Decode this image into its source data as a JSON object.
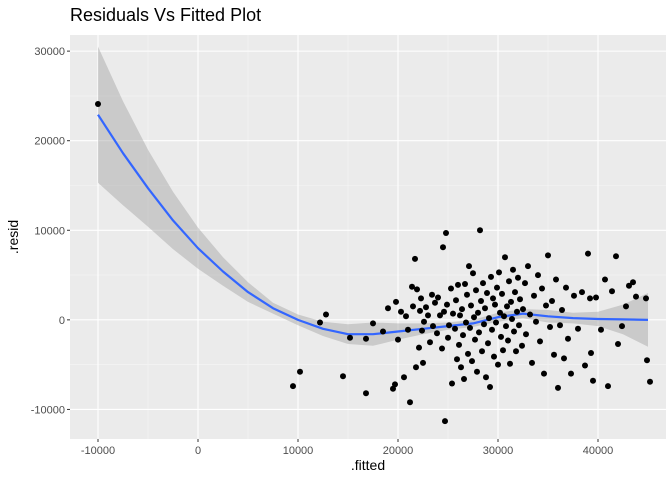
{
  "chart_data": {
    "type": "scatter",
    "title": "Residuals Vs Fitted Plot",
    "xlabel": ".fitted",
    "ylabel": ".resid",
    "xlim": [
      -12800,
      46800
    ],
    "ylim": [
      -13300,
      31800
    ],
    "x_ticks": [
      -10000,
      0,
      10000,
      20000,
      30000,
      40000
    ],
    "x_tick_labels": [
      "-10000",
      "0",
      "10000",
      "20000",
      "30000",
      "40000"
    ],
    "y_ticks": [
      -10000,
      0,
      10000,
      20000,
      30000
    ],
    "y_tick_labels": [
      "-10000",
      "0",
      "10000",
      "20000",
      "30000"
    ],
    "grid": true,
    "colors": {
      "panel": "#ebebeb",
      "grid_major": "#ffffff",
      "grid_minor": "#f5f5f5",
      "points": "#000000",
      "smooth_line": "#3366ff",
      "confidence_band": "#999999"
    },
    "points": [
      {
        "x": -10000,
        "y": 24100
      },
      {
        "x": 9500,
        "y": -7400
      },
      {
        "x": 10200,
        "y": -5800
      },
      {
        "x": 12200,
        "y": -300
      },
      {
        "x": 12800,
        "y": 600
      },
      {
        "x": 14500,
        "y": -6300
      },
      {
        "x": 15200,
        "y": -2000
      },
      {
        "x": 16800,
        "y": -2100
      },
      {
        "x": 16800,
        "y": -8200
      },
      {
        "x": 17500,
        "y": -400
      },
      {
        "x": 18500,
        "y": -1300
      },
      {
        "x": 19000,
        "y": 1300
      },
      {
        "x": 19500,
        "y": -7700
      },
      {
        "x": 19700,
        "y": -7200
      },
      {
        "x": 19800,
        "y": 2000
      },
      {
        "x": 20000,
        "y": -2200
      },
      {
        "x": 20300,
        "y": 900
      },
      {
        "x": 20600,
        "y": -6400
      },
      {
        "x": 20800,
        "y": 400
      },
      {
        "x": 21000,
        "y": -1100
      },
      {
        "x": 21200,
        "y": -9200
      },
      {
        "x": 21400,
        "y": 3700
      },
      {
        "x": 21500,
        "y": 1500
      },
      {
        "x": 21700,
        "y": 6800
      },
      {
        "x": 21800,
        "y": -5300
      },
      {
        "x": 21900,
        "y": 3400
      },
      {
        "x": 22100,
        "y": -3100
      },
      {
        "x": 22200,
        "y": 1000
      },
      {
        "x": 22300,
        "y": 2400
      },
      {
        "x": 22400,
        "y": -1200
      },
      {
        "x": 22500,
        "y": -4800
      },
      {
        "x": 22600,
        "y": -200
      },
      {
        "x": 22800,
        "y": 1400
      },
      {
        "x": 23000,
        "y": 500
      },
      {
        "x": 23200,
        "y": -2500
      },
      {
        "x": 23400,
        "y": 2800
      },
      {
        "x": 23500,
        "y": -700
      },
      {
        "x": 23700,
        "y": 1900
      },
      {
        "x": 23900,
        "y": -1500
      },
      {
        "x": 24000,
        "y": 2500
      },
      {
        "x": 24200,
        "y": 500
      },
      {
        "x": 24400,
        "y": -3200
      },
      {
        "x": 24500,
        "y": 8100
      },
      {
        "x": 24600,
        "y": 900
      },
      {
        "x": 24700,
        "y": -11300
      },
      {
        "x": 24800,
        "y": 9700
      },
      {
        "x": 24900,
        "y": 1700
      },
      {
        "x": 25000,
        "y": -2000
      },
      {
        "x": 25100,
        "y": -600
      },
      {
        "x": 25300,
        "y": 3500
      },
      {
        "x": 25400,
        "y": -7100
      },
      {
        "x": 25500,
        "y": 700
      },
      {
        "x": 25700,
        "y": -1000
      },
      {
        "x": 25800,
        "y": 2200
      },
      {
        "x": 25900,
        "y": -4400
      },
      {
        "x": 26000,
        "y": 3900
      },
      {
        "x": 26100,
        "y": -2800
      },
      {
        "x": 26200,
        "y": 500
      },
      {
        "x": 26300,
        "y": -5300
      },
      {
        "x": 26400,
        "y": 1200
      },
      {
        "x": 26500,
        "y": -1700
      },
      {
        "x": 26600,
        "y": -6600
      },
      {
        "x": 26700,
        "y": 4000
      },
      {
        "x": 26800,
        "y": -300
      },
      {
        "x": 26900,
        "y": 2800
      },
      {
        "x": 27000,
        "y": -3800
      },
      {
        "x": 27100,
        "y": 6000
      },
      {
        "x": 27200,
        "y": -900
      },
      {
        "x": 27300,
        "y": 1600
      },
      {
        "x": 27400,
        "y": -4600
      },
      {
        "x": 27500,
        "y": 5200
      },
      {
        "x": 27600,
        "y": 300
      },
      {
        "x": 27700,
        "y": -2200
      },
      {
        "x": 27800,
        "y": 3300
      },
      {
        "x": 27900,
        "y": -5800
      },
      {
        "x": 28000,
        "y": 800
      },
      {
        "x": 28100,
        "y": -1400
      },
      {
        "x": 28200,
        "y": 10000
      },
      {
        "x": 28300,
        "y": 2100
      },
      {
        "x": 28400,
        "y": -3500
      },
      {
        "x": 28500,
        "y": 4100
      },
      {
        "x": 28600,
        "y": -500
      },
      {
        "x": 28700,
        "y": 1300
      },
      {
        "x": 28800,
        "y": -6400
      },
      {
        "x": 28900,
        "y": 3000
      },
      {
        "x": 29000,
        "y": -2600
      },
      {
        "x": 29100,
        "y": 200
      },
      {
        "x": 29200,
        "y": -7500
      },
      {
        "x": 29300,
        "y": 4800
      },
      {
        "x": 29400,
        "y": -1100
      },
      {
        "x": 29500,
        "y": 2400
      },
      {
        "x": 29600,
        "y": -4100
      },
      {
        "x": 29700,
        "y": 1700
      },
      {
        "x": 29800,
        "y": -300
      },
      {
        "x": 29900,
        "y": 3600
      },
      {
        "x": 30000,
        "y": -5000
      },
      {
        "x": 30100,
        "y": 5300
      },
      {
        "x": 30200,
        "y": 800
      },
      {
        "x": 30300,
        "y": -1900
      },
      {
        "x": 30400,
        "y": 2900
      },
      {
        "x": 30500,
        "y": -3400
      },
      {
        "x": 30600,
        "y": 400
      },
      {
        "x": 30700,
        "y": 7000
      },
      {
        "x": 30800,
        "y": -700
      },
      {
        "x": 30900,
        "y": 1500
      },
      {
        "x": 31000,
        "y": -2300
      },
      {
        "x": 31100,
        "y": 4300
      },
      {
        "x": 31200,
        "y": -4900
      },
      {
        "x": 31300,
        "y": 2000
      },
      {
        "x": 31400,
        "y": 100
      },
      {
        "x": 31500,
        "y": 5600
      },
      {
        "x": 31600,
        "y": -1300
      },
      {
        "x": 31700,
        "y": 3100
      },
      {
        "x": 31800,
        "y": -3500
      },
      {
        "x": 31900,
        "y": 900
      },
      {
        "x": 32000,
        "y": 4700
      },
      {
        "x": 32100,
        "y": -600
      },
      {
        "x": 32200,
        "y": 2300
      },
      {
        "x": 32400,
        "y": -2900
      },
      {
        "x": 32500,
        "y": 1200
      },
      {
        "x": 32700,
        "y": 4100
      },
      {
        "x": 32800,
        "y": -1600
      },
      {
        "x": 33000,
        "y": 6000
      },
      {
        "x": 33200,
        "y": 600
      },
      {
        "x": 33400,
        "y": -4800
      },
      {
        "x": 33600,
        "y": 2700
      },
      {
        "x": 33800,
        "y": -200
      },
      {
        "x": 34000,
        "y": 5000
      },
      {
        "x": 34200,
        "y": -2400
      },
      {
        "x": 34400,
        "y": 3500
      },
      {
        "x": 34600,
        "y": -6000
      },
      {
        "x": 34800,
        "y": 1600
      },
      {
        "x": 35000,
        "y": 7200
      },
      {
        "x": 35200,
        "y": -800
      },
      {
        "x": 35400,
        "y": 2100
      },
      {
        "x": 35600,
        "y": -3900
      },
      {
        "x": 35800,
        "y": 4500
      },
      {
        "x": 36000,
        "y": -7600
      },
      {
        "x": 36200,
        "y": -600
      },
      {
        "x": 36400,
        "y": 1100
      },
      {
        "x": 36600,
        "y": -4300
      },
      {
        "x": 36800,
        "y": 3600
      },
      {
        "x": 37000,
        "y": -2100
      },
      {
        "x": 37300,
        "y": -6000
      },
      {
        "x": 37600,
        "y": 2700
      },
      {
        "x": 38000,
        "y": -1000
      },
      {
        "x": 38400,
        "y": 3100
      },
      {
        "x": 38700,
        "y": -5100
      },
      {
        "x": 39000,
        "y": 7400
      },
      {
        "x": 39200,
        "y": 2400
      },
      {
        "x": 39300,
        "y": -3700
      },
      {
        "x": 39500,
        "y": -6800
      },
      {
        "x": 39800,
        "y": 2500
      },
      {
        "x": 40300,
        "y": -1100
      },
      {
        "x": 40700,
        "y": 4500
      },
      {
        "x": 41000,
        "y": -7400
      },
      {
        "x": 41400,
        "y": 3200
      },
      {
        "x": 41800,
        "y": 7100
      },
      {
        "x": 42000,
        "y": -2700
      },
      {
        "x": 42400,
        "y": -700
      },
      {
        "x": 42800,
        "y": 1500
      },
      {
        "x": 43100,
        "y": 3800
      },
      {
        "x": 43500,
        "y": 4200
      },
      {
        "x": 43800,
        "y": 2600
      },
      {
        "x": 44800,
        "y": 2400
      },
      {
        "x": 44900,
        "y": -4500
      },
      {
        "x": 45200,
        "y": -6900
      }
    ],
    "smooth": {
      "x": [
        -10000,
        -7500,
        -5000,
        -2500,
        0,
        2500,
        5000,
        7500,
        10000,
        12500,
        15000,
        17500,
        20000,
        22500,
        25000,
        27500,
        30000,
        32500,
        35000,
        37500,
        40000,
        42500,
        45000
      ],
      "y": [
        22900,
        18600,
        14700,
        11100,
        8000,
        5400,
        3100,
        1300,
        0,
        -1000,
        -1600,
        -1600,
        -1300,
        -1000,
        -700,
        -400,
        300,
        700,
        400,
        200,
        100,
        50,
        0
      ],
      "lower": [
        15300,
        12800,
        10400,
        7900,
        5700,
        3800,
        2000,
        700,
        -600,
        -1800,
        -2700,
        -2900,
        -2200,
        -1600,
        -1100,
        -800,
        -200,
        200,
        -300,
        -400,
        -700,
        -1600,
        -3000
      ],
      "upper": [
        30500,
        24400,
        19000,
        14300,
        10300,
        7000,
        4200,
        1900,
        600,
        -200,
        -500,
        -300,
        -400,
        -400,
        -300,
        0,
        800,
        1200,
        1100,
        800,
        900,
        1700,
        3000
      ]
    }
  }
}
